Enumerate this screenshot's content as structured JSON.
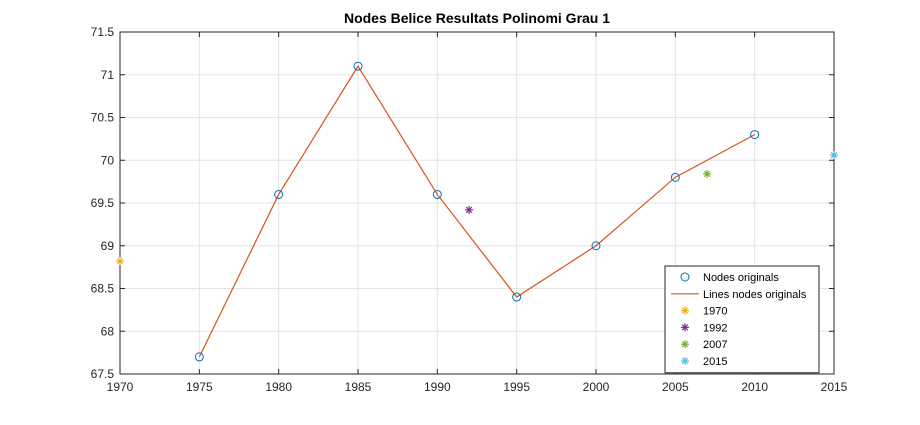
{
  "chart_data": {
    "type": "line",
    "title": "Nodes Belice Resultats Polinomi Grau 1",
    "xlabel": "",
    "ylabel": "",
    "xlim": [
      1970,
      2015
    ],
    "ylim": [
      67.5,
      71.5
    ],
    "xticks": [
      1970,
      1975,
      1980,
      1985,
      1990,
      1995,
      2000,
      2005,
      2010,
      2015
    ],
    "yticks": [
      67.5,
      68,
      68.5,
      69,
      69.5,
      70,
      70.5,
      71,
      71.5
    ],
    "ytick_labels": [
      "67.5",
      "68",
      "68.5",
      "69",
      "69.5",
      "70",
      "70.5",
      "71",
      "71.5"
    ],
    "grid": true,
    "legend_position": "bottom-right",
    "series": [
      {
        "name": "Nodes originals",
        "style": "markers-circle",
        "color": "#0072BD",
        "x": [
          1975,
          1980,
          1985,
          1990,
          1995,
          2000,
          2005,
          2010
        ],
        "y": [
          67.7,
          69.6,
          71.1,
          69.6,
          68.4,
          69.0,
          69.8,
          70.3
        ]
      },
      {
        "name": "Lines nodes originals",
        "style": "line",
        "color": "#D95319",
        "x": [
          1975,
          1980,
          1985,
          1990,
          1995,
          2000,
          2005,
          2010
        ],
        "y": [
          67.7,
          69.6,
          71.1,
          69.6,
          68.4,
          69.0,
          69.8,
          70.3
        ]
      },
      {
        "name": "1970",
        "style": "marker-star",
        "color": "#EDB120",
        "x": [
          1970
        ],
        "y": [
          68.82
        ]
      },
      {
        "name": "1992",
        "style": "marker-star",
        "color": "#7E2F8E",
        "x": [
          1992
        ],
        "y": [
          69.42
        ]
      },
      {
        "name": "2007",
        "style": "marker-star",
        "color": "#77AC30",
        "x": [
          2007
        ],
        "y": [
          69.84
        ]
      },
      {
        "name": "2015",
        "style": "marker-star",
        "color": "#4DBEEE",
        "x": [
          2015
        ],
        "y": [
          70.06
        ]
      }
    ]
  }
}
